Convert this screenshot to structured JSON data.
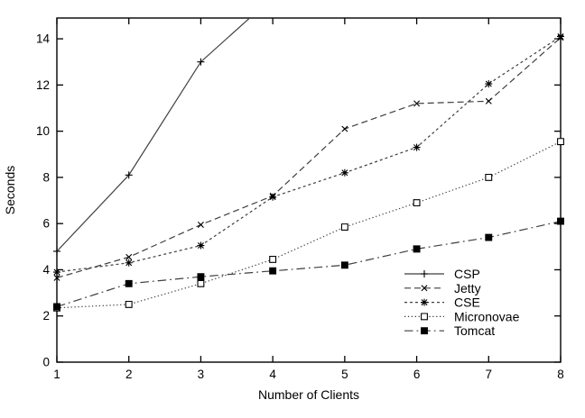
{
  "figure": {
    "background_color": "#ffffff",
    "axis_color": "#000000",
    "series_line_color": "#3f3f3f",
    "marker_color": "#000000",
    "text_color": "#000000"
  },
  "chart_data": {
    "type": "line",
    "title": "",
    "xlabel": "Number of Clients",
    "ylabel": "Seconds",
    "x": [
      1,
      2,
      3,
      4,
      5,
      6,
      7,
      8
    ],
    "xlim": [
      1,
      8
    ],
    "ylim": [
      0,
      14.9
    ],
    "xticks": [
      1,
      2,
      3,
      4,
      5,
      6,
      7,
      8
    ],
    "yticks": [
      0,
      2,
      4,
      6,
      8,
      10,
      12,
      14
    ],
    "grid": false,
    "legend_position": "inside-lower-right",
    "legend_entries": [
      "CSP",
      "Jetty",
      "CSE",
      "Micronovae",
      "Tomcat"
    ],
    "series": [
      {
        "name": "CSP",
        "marker": "plus",
        "dash": "solid",
        "values": [
          4.8,
          8.1,
          13.0,
          15.8,
          null,
          null,
          null,
          null
        ],
        "note": "rises off the top of the plot between 3 and 4 clients"
      },
      {
        "name": "Jetty",
        "marker": "cross",
        "dash": "dashed",
        "values": [
          3.65,
          4.55,
          5.95,
          7.2,
          10.1,
          11.2,
          11.3,
          14.05
        ]
      },
      {
        "name": "CSE",
        "marker": "asterisk",
        "dash": "fine-dash",
        "values": [
          3.9,
          4.3,
          5.05,
          7.15,
          8.2,
          9.3,
          12.05,
          14.1
        ]
      },
      {
        "name": "Micronovae",
        "marker": "open-square",
        "dash": "dotted",
        "values": [
          2.35,
          2.5,
          3.4,
          4.45,
          5.85,
          6.9,
          8.0,
          9.55
        ]
      },
      {
        "name": "Tomcat",
        "marker": "filled-square",
        "dash": "dash-dot",
        "values": [
          2.4,
          3.4,
          3.7,
          3.95,
          4.2,
          4.9,
          5.4,
          6.1
        ]
      }
    ]
  }
}
